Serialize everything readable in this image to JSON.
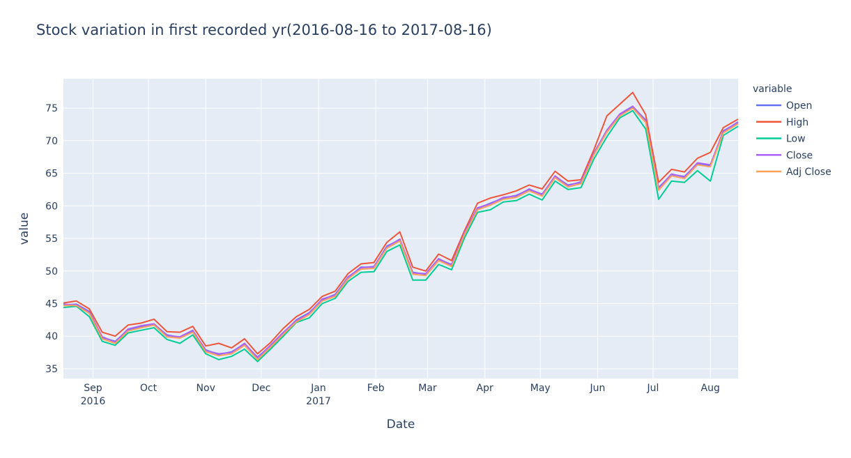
{
  "chart_data": {
    "type": "line",
    "title": "Stock variation in first recorded yr(2016-08-16 to 2017-08-16)",
    "xlabel": "Date",
    "ylabel": "value",
    "xlim": [
      "2016-08-16",
      "2017-08-16"
    ],
    "ylim": [
      33.5,
      79.5
    ],
    "y_ticks": [
      35,
      40,
      45,
      50,
      55,
      60,
      65,
      70,
      75
    ],
    "x_ticks": [
      {
        "date": "2016-09-01",
        "label": "Sep",
        "sublabel": "2016"
      },
      {
        "date": "2016-10-01",
        "label": "Oct",
        "sublabel": ""
      },
      {
        "date": "2016-11-01",
        "label": "Nov",
        "sublabel": ""
      },
      {
        "date": "2016-12-01",
        "label": "Dec",
        "sublabel": ""
      },
      {
        "date": "2017-01-01",
        "label": "Jan",
        "sublabel": "2017"
      },
      {
        "date": "2017-02-01",
        "label": "Feb",
        "sublabel": ""
      },
      {
        "date": "2017-03-01",
        "label": "Mar",
        "sublabel": ""
      },
      {
        "date": "2017-04-01",
        "label": "Apr",
        "sublabel": ""
      },
      {
        "date": "2017-05-01",
        "label": "May",
        "sublabel": ""
      },
      {
        "date": "2017-06-01",
        "label": "Jun",
        "sublabel": ""
      },
      {
        "date": "2017-07-01",
        "label": "Jul",
        "sublabel": ""
      },
      {
        "date": "2017-08-01",
        "label": "Aug",
        "sublabel": ""
      }
    ],
    "legend_title": "variable",
    "legend_position": "right",
    "grid": true,
    "colors": {
      "plot_bg": "#e5ecf6",
      "grid": "#ffffff",
      "text": "#2a3f5f",
      "Open": "#636efa",
      "High": "#ef553b",
      "Low": "#00cc96",
      "Close": "#ab63fa",
      "Adj Close": "#ffa15a"
    },
    "x": [
      "2016-08-16",
      "2016-08-23",
      "2016-08-30",
      "2016-09-06",
      "2016-09-13",
      "2016-09-20",
      "2016-09-27",
      "2016-10-04",
      "2016-10-11",
      "2016-10-18",
      "2016-10-25",
      "2016-11-01",
      "2016-11-08",
      "2016-11-15",
      "2016-11-22",
      "2016-11-29",
      "2016-12-06",
      "2016-12-13",
      "2016-12-20",
      "2016-12-27",
      "2017-01-03",
      "2017-01-10",
      "2017-01-17",
      "2017-01-24",
      "2017-01-31",
      "2017-02-07",
      "2017-02-14",
      "2017-02-21",
      "2017-02-28",
      "2017-03-07",
      "2017-03-14",
      "2017-03-21",
      "2017-03-28",
      "2017-04-04",
      "2017-04-11",
      "2017-04-18",
      "2017-04-25",
      "2017-05-02",
      "2017-05-09",
      "2017-05-16",
      "2017-05-23",
      "2017-05-30",
      "2017-06-06",
      "2017-06-13",
      "2017-06-20",
      "2017-06-27",
      "2017-07-04",
      "2017-07-11",
      "2017-07-18",
      "2017-07-25",
      "2017-08-01",
      "2017-08-08",
      "2017-08-16"
    ],
    "series": [
      {
        "name": "Open",
        "values": [
          44.8,
          44.9,
          43.8,
          39.8,
          39.2,
          41.0,
          41.5,
          41.8,
          40.2,
          39.8,
          40.8,
          37.9,
          37.2,
          37.6,
          38.8,
          36.8,
          38.5,
          40.5,
          42.5,
          43.6,
          45.6,
          46.4,
          49.0,
          50.6,
          50.6,
          53.8,
          54.8,
          49.8,
          49.5,
          51.8,
          51.0,
          55.8,
          59.6,
          60.4,
          61.2,
          61.6,
          62.5,
          61.8,
          64.5,
          63.2,
          63.6,
          68.0,
          71.5,
          74.0,
          75.2,
          73.2,
          62.8,
          64.8,
          64.5,
          66.5,
          66.2,
          71.5,
          72.8
        ]
      },
      {
        "name": "High",
        "values": [
          45.1,
          45.4,
          44.2,
          40.6,
          40.0,
          41.7,
          42.0,
          42.6,
          40.7,
          40.6,
          41.5,
          38.5,
          38.9,
          38.2,
          39.6,
          37.3,
          39.0,
          41.2,
          43.0,
          44.1,
          46.1,
          46.9,
          49.6,
          51.1,
          51.3,
          54.4,
          56.0,
          50.6,
          50.0,
          52.6,
          51.6,
          56.2,
          60.4,
          61.2,
          61.7,
          62.3,
          63.2,
          62.6,
          65.3,
          63.8,
          64.0,
          68.6,
          73.8,
          75.6,
          77.4,
          74.0,
          63.6,
          65.6,
          65.2,
          67.3,
          68.2,
          72.0,
          73.3
        ]
      },
      {
        "name": "Low",
        "values": [
          44.4,
          44.6,
          43.0,
          39.2,
          38.6,
          40.5,
          40.9,
          41.3,
          39.5,
          38.9,
          40.2,
          37.3,
          36.4,
          36.9,
          38.0,
          36.1,
          38.0,
          40.0,
          42.1,
          42.8,
          45.0,
          45.8,
          48.4,
          49.8,
          49.9,
          53.0,
          54.0,
          48.6,
          48.6,
          51.0,
          50.2,
          55.1,
          59.0,
          59.4,
          60.6,
          60.8,
          61.8,
          60.9,
          63.8,
          62.5,
          62.8,
          67.2,
          70.6,
          73.5,
          74.6,
          71.8,
          61.0,
          63.8,
          63.6,
          65.4,
          63.8,
          70.8,
          72.2
        ]
      },
      {
        "name": "Close",
        "values": [
          44.9,
          44.8,
          43.7,
          39.9,
          39.1,
          41.1,
          41.6,
          41.9,
          40.1,
          39.9,
          40.9,
          37.8,
          37.3,
          37.5,
          38.9,
          36.7,
          38.6,
          40.6,
          42.4,
          43.5,
          45.7,
          46.3,
          49.1,
          50.5,
          50.7,
          53.7,
          54.9,
          49.7,
          49.6,
          51.9,
          50.9,
          55.9,
          59.7,
          60.3,
          61.3,
          61.5,
          62.6,
          61.7,
          64.6,
          63.1,
          63.7,
          68.1,
          71.6,
          74.1,
          75.3,
          73.1,
          62.7,
          64.9,
          64.4,
          66.6,
          66.3,
          71.4,
          72.9
        ]
      },
      {
        "name": "Adj Close",
        "values": [
          44.7,
          44.7,
          43.5,
          39.6,
          38.9,
          40.8,
          41.3,
          41.7,
          39.9,
          39.7,
          40.6,
          37.6,
          37.0,
          37.3,
          38.6,
          36.4,
          38.3,
          40.3,
          42.2,
          43.3,
          45.4,
          46.1,
          48.8,
          50.3,
          50.4,
          53.5,
          54.6,
          49.5,
          49.3,
          51.6,
          50.7,
          55.6,
          59.4,
          60.1,
          61.0,
          61.3,
          62.3,
          61.5,
          64.3,
          62.9,
          63.4,
          67.8,
          71.3,
          73.8,
          75.0,
          72.8,
          62.4,
          64.6,
          64.2,
          66.3,
          66.0,
          71.2,
          72.6
        ]
      }
    ]
  }
}
